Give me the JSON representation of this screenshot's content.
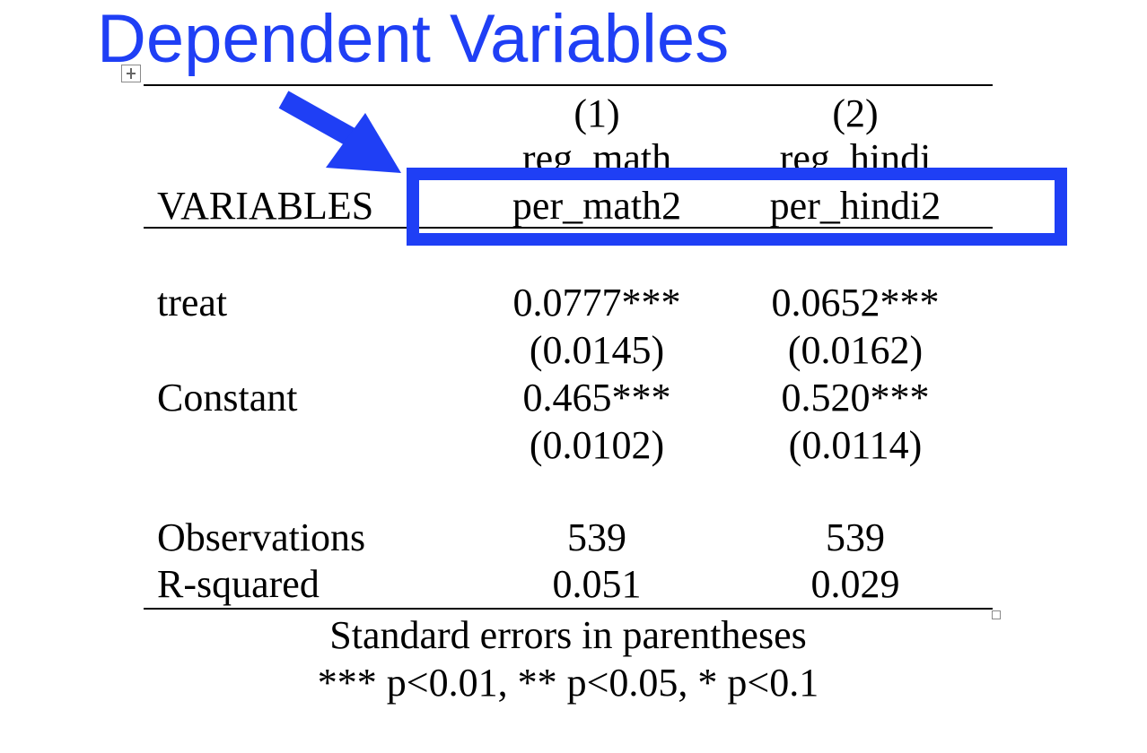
{
  "annotation": {
    "title": "Dependent Variables",
    "color": "#1f3ff5"
  },
  "table": {
    "column_numbers": [
      "(1)",
      "(2)"
    ],
    "model_names": [
      "reg_math",
      "reg_hindi"
    ],
    "header_label": "VARIABLES",
    "dependent_variables": [
      "per_math2",
      "per_hindi2"
    ],
    "rows": [
      {
        "label": "treat",
        "values": [
          "0.0777***",
          "0.0652***"
        ],
        "std_errors": [
          "(0.0145)",
          "(0.0162)"
        ]
      },
      {
        "label": "Constant",
        "values": [
          "0.465***",
          "0.520***"
        ],
        "std_errors": [
          "(0.0102)",
          "(0.0114)"
        ]
      }
    ],
    "stats": [
      {
        "label": "Observations",
        "values": [
          "539",
          "539"
        ]
      },
      {
        "label": "R-squared",
        "values": [
          "0.051",
          "0.029"
        ]
      }
    ],
    "notes": [
      "Standard errors in parentheses",
      "*** p<0.01, ** p<0.05, * p<0.1"
    ]
  }
}
